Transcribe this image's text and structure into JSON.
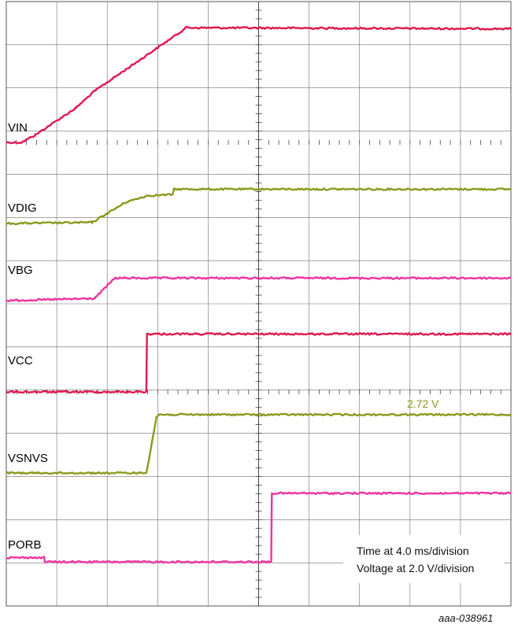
{
  "chart_data": {
    "type": "line",
    "x_unit": "ms",
    "x_range": [
      0,
      40
    ],
    "grid": true,
    "series": [
      {
        "name": "VIN",
        "color": "#e0174f",
        "values_v": [
          [
            0,
            0.0
          ],
          [
            1.2,
            0.0
          ],
          [
            2.3,
            0.35
          ],
          [
            5.5,
            1.6
          ],
          [
            7.0,
            2.4
          ],
          [
            13.8,
            5.15
          ],
          [
            14.2,
            5.35
          ],
          [
            40,
            5.3
          ]
        ]
      },
      {
        "name": "VDIG",
        "color": "#8a9a1c",
        "values_v": [
          [
            0,
            0.0
          ],
          [
            6.8,
            0.05
          ],
          [
            9.5,
            1.0
          ],
          [
            11.2,
            1.3
          ],
          [
            13.2,
            1.35
          ],
          [
            13.3,
            1.6
          ],
          [
            40,
            1.6
          ]
        ]
      },
      {
        "name": "VBG",
        "color": "#f0329f",
        "values_v": [
          [
            0,
            0.0
          ],
          [
            7.0,
            0.1
          ],
          [
            8.6,
            1.05
          ],
          [
            40,
            1.05
          ]
        ]
      },
      {
        "name": "VCC",
        "color": "#e0174f",
        "values_v": [
          [
            0,
            0.0
          ],
          [
            11.1,
            0.0
          ],
          [
            11.15,
            2.7
          ],
          [
            40,
            2.7
          ]
        ]
      },
      {
        "name": "VSNVS",
        "color": "#8a9a1c",
        "values_v": [
          [
            0,
            0.0
          ],
          [
            11.1,
            0.0
          ],
          [
            11.9,
            2.6
          ],
          [
            12.1,
            2.72
          ],
          [
            40,
            2.72
          ]
        ]
      },
      {
        "name": "PORB",
        "color": "#f0329f",
        "values_v": [
          [
            0,
            0.2
          ],
          [
            3.0,
            0.2
          ],
          [
            3.05,
            0.0
          ],
          [
            21.0,
            0.0
          ],
          [
            21.05,
            3.2
          ],
          [
            40,
            3.2
          ]
        ]
      }
    ],
    "annotations": [
      {
        "text": "2.72 V",
        "x": 33.0,
        "series": "VSNVS",
        "color": "#8a9a1c"
      }
    ],
    "info_box": [
      "Time at 4.0 ms/division",
      "Voltage at 2.0 V/division"
    ],
    "figure_code": "aaa-038961"
  }
}
